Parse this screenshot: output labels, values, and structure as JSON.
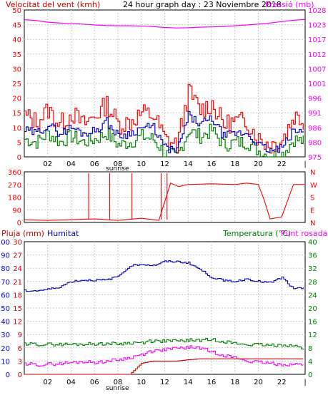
{
  "colors": {
    "wind": "#ff0000",
    "gust": "#ff0000",
    "wind_avg_blue": "#0000c0",
    "wind_green": "#008000",
    "pressure": "#ff00ff",
    "direction": "#ff0000",
    "rain": "#cc0000",
    "humidity": "#0000c0",
    "temperature": "#008000",
    "dewpoint": "#ff00ff",
    "grid": "#c8c8c8"
  },
  "header": {
    "wind_label": "Velocitat del vent (kmh)",
    "title": "24 hour graph day : 23 Noviembre 2018",
    "pressure_label": "Pressió (mb)"
  },
  "bottom_header": {
    "rain_label": "Pluja (mm)",
    "humidity_label": "Humitat",
    "temp_label": "Temperatura (°C)",
    "dew_label": "Punt rosada"
  },
  "sunrise_label": "sunrise",
  "x_ticks": [
    "02",
    "04",
    "06",
    "08",
    "10",
    "12",
    "14",
    "16",
    "18",
    "20",
    "22",
    "|"
  ],
  "chart_data": [
    {
      "type": "line",
      "title": "24 hour graph day : 23 Noviembre 2018",
      "x": [
        0,
        1,
        2,
        3,
        4,
        5,
        6,
        7,
        8,
        9,
        10,
        11,
        12,
        13,
        14,
        15,
        16,
        17,
        18,
        19,
        20,
        21,
        22,
        23,
        24
      ],
      "left_axis": {
        "label": "Velocitat del vent (kmh)",
        "ticks": [
          "0",
          "5",
          "10",
          "15",
          "20",
          "25",
          "30",
          "35",
          "40",
          "45",
          "50"
        ],
        "ylim": [
          0,
          50
        ]
      },
      "right_axis": {
        "label": "Pressió (mb)",
        "ticks": [
          "975",
          "980",
          "986",
          "991",
          "996",
          "1001",
          "1007",
          "1012",
          "1017",
          "1023",
          "1028"
        ],
        "ylim": [
          975,
          1028
        ]
      },
      "series": [
        {
          "name": "gust",
          "values": [
            14,
            12,
            16,
            11,
            15,
            11,
            14,
            18,
            11,
            12,
            15,
            14,
            6,
            4,
            22,
            16,
            18,
            11,
            12,
            12,
            6,
            4,
            6,
            14,
            12
          ]
        },
        {
          "name": "wind_avg",
          "values": [
            9,
            8,
            11,
            8,
            10,
            8,
            9,
            12,
            7,
            8,
            10,
            10,
            3,
            2,
            14,
            11,
            13,
            7,
            8,
            8,
            4,
            2,
            3,
            9,
            8
          ]
        },
        {
          "name": "wind_min",
          "values": [
            6,
            5,
            8,
            5,
            7,
            5,
            6,
            8,
            4,
            5,
            7,
            6,
            1,
            0,
            9,
            7,
            9,
            4,
            5,
            5,
            2,
            0,
            1,
            6,
            5
          ]
        },
        {
          "name": "pressure",
          "values": [
            1024.5,
            1024.2,
            1023.6,
            1023.3,
            1023.1,
            1022.9,
            1022.6,
            1022.4,
            1022.3,
            1022.3,
            1022.2,
            1022.0,
            1021.7,
            1021.5,
            1021.6,
            1021.8,
            1021.9,
            1022.0,
            1022.3,
            1022.6,
            1022.9,
            1023.3,
            1023.8,
            1024.3,
            1024.6
          ]
        }
      ]
    },
    {
      "type": "line",
      "left_axis": {
        "ticks": [
          "360",
          "270",
          "180",
          "90",
          "0"
        ],
        "ylim": [
          0,
          360
        ]
      },
      "right_axis": {
        "ticks": [
          "N",
          "W",
          "S",
          "E",
          "N"
        ]
      },
      "series": [
        {
          "name": "direction",
          "x": [
            0,
            2,
            4,
            6,
            8,
            10,
            11,
            11.5,
            12.5,
            13.2,
            14,
            16,
            18,
            19,
            20,
            20.5,
            21,
            22,
            23,
            24
          ],
          "values": [
            20,
            15,
            20,
            25,
            15,
            30,
            20,
            15,
            280,
            255,
            270,
            275,
            270,
            280,
            270,
            160,
            25,
            40,
            270,
            270
          ]
        }
      ]
    },
    {
      "type": "line",
      "axes": {
        "rain": {
          "label": "Pluja (mm)",
          "ticks": [
            "0",
            "3",
            "6",
            "9",
            "12",
            "15",
            "18",
            "21",
            "24",
            "27",
            "30"
          ],
          "ylim": [
            0,
            30
          ]
        },
        "humidity": {
          "label": "Humitat",
          "ticks": [
            "0",
            "10",
            "20",
            "30",
            "40",
            "50",
            "60",
            "70",
            "80",
            "90",
            "100"
          ],
          "ylim": [
            0,
            100
          ]
        },
        "temperature": {
          "label": "Temperatura (°C)",
          "ticks": [
            "0",
            "4",
            "8",
            "12",
            "16",
            "20",
            "24",
            "28",
            "32",
            "36",
            "40"
          ],
          "ylim": [
            0,
            40
          ]
        }
      },
      "series": [
        {
          "name": "Humitat",
          "values": [
            63,
            63,
            64,
            66,
            70,
            71,
            71,
            71,
            74,
            82,
            83,
            82,
            85,
            85,
            84,
            79,
            73,
            71,
            70,
            72,
            70,
            69,
            73,
            64,
            66
          ]
        },
        {
          "name": "Temperatura",
          "values": [
            9.3,
            9.0,
            9.0,
            9.0,
            9.0,
            9.1,
            9.2,
            9.3,
            9.2,
            9.5,
            9.6,
            10.0,
            10.1,
            10.0,
            10.3,
            10.3,
            10.5,
            10.0,
            9.3,
            9.0,
            8.9,
            8.7,
            9.0,
            8.6,
            7.5
          ]
        },
        {
          "name": "Punt rosada",
          "values": [
            3.3,
            2.8,
            3.0,
            3.2,
            3.5,
            3.8,
            3.6,
            4.0,
            4.4,
            5.0,
            6.0,
            7.0,
            7.5,
            7.8,
            8.2,
            8.0,
            6.8,
            5.8,
            5.0,
            4.0,
            3.6,
            3.3,
            3.0,
            3.0,
            3.0
          ]
        },
        {
          "name": "Pluja",
          "values": [
            0,
            0,
            0,
            0,
            0,
            0,
            0,
            0,
            0,
            0,
            2.5,
            3.0,
            3.0,
            3.0,
            3.3,
            3.5,
            3.5,
            3.5,
            3.5,
            3.5,
            3.5,
            3.5,
            3.5,
            3.5,
            3.5
          ]
        }
      ]
    }
  ]
}
